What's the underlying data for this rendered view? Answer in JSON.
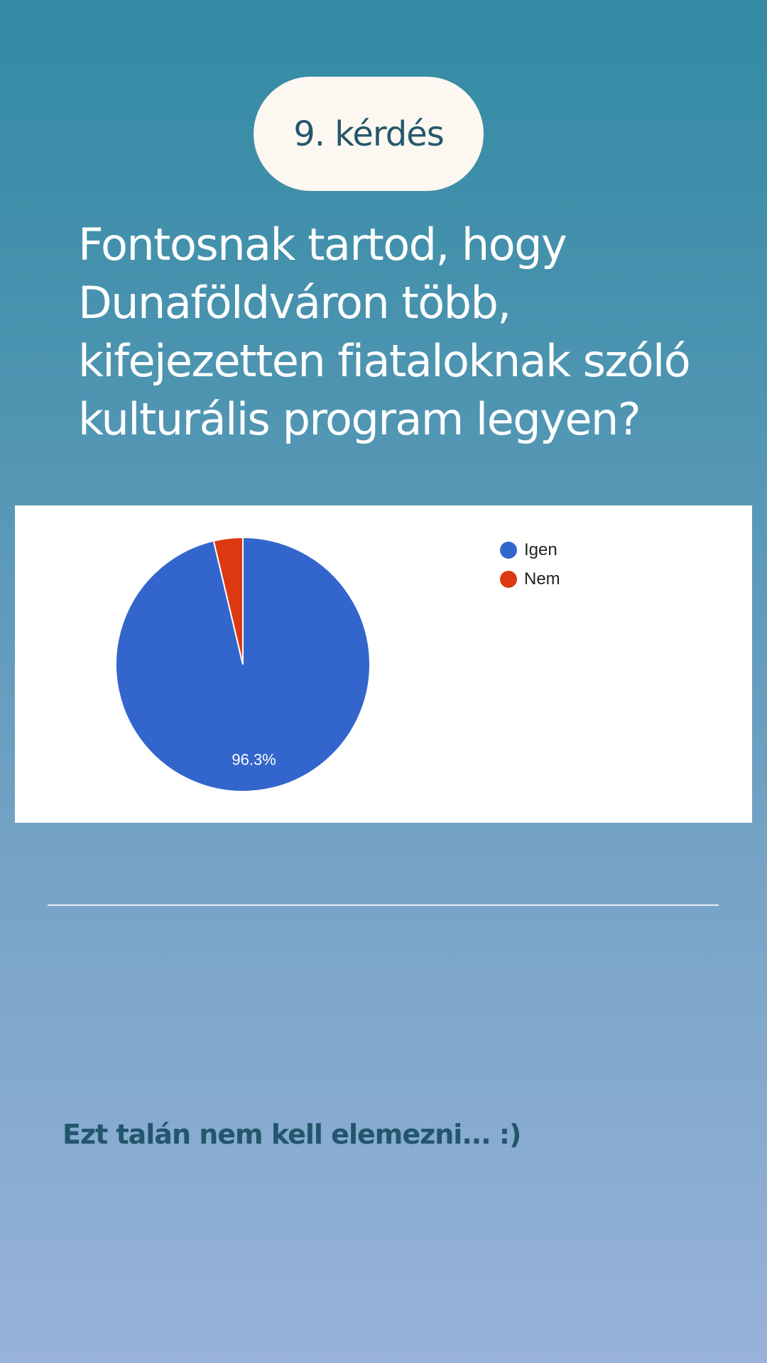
{
  "question": {
    "number_label": "9. kérdés",
    "text": "Fontosnak tartod, hogy Dunaföldváron több, kifejezetten fiataloknak szóló kulturális program legyen?"
  },
  "chart_data": {
    "type": "pie",
    "categories": [
      "Igen",
      "Nem"
    ],
    "values": [
      96.3,
      3.7
    ],
    "data_labels": [
      "96.3%",
      ""
    ],
    "colors": [
      "#3366cc",
      "#dc3912"
    ],
    "legend_position": "top-right"
  },
  "note": "Ezt talán nem kell elemezni... :)"
}
